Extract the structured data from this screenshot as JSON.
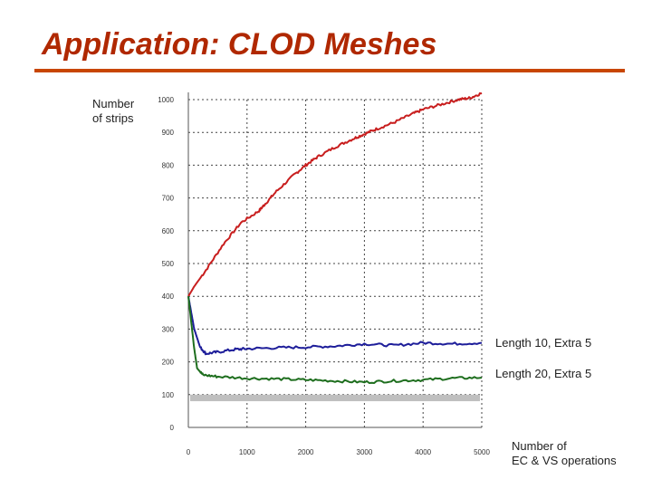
{
  "slide": {
    "title": "Application: CLOD Meshes"
  },
  "chart_data": {
    "type": "line",
    "ylabel_lines": [
      "Number",
      "of strips"
    ],
    "xlabel_lines": [
      "Number of",
      "EC & VS operations"
    ],
    "x_ticks": [
      0,
      1000,
      2000,
      3000,
      4000,
      5000
    ],
    "y_ticks": [
      0,
      100,
      200,
      300,
      400,
      500,
      600,
      700,
      800,
      900,
      1000
    ],
    "xlim": [
      0,
      5000
    ],
    "ylim": [
      0,
      1000
    ],
    "grid": true,
    "colors": {
      "red": "#c81e1e",
      "blue": "#1e1e9a",
      "green": "#1e6e1e",
      "band": "#bfbfbf"
    },
    "series": [
      {
        "name": "upper",
        "color_key": "red",
        "label": "",
        "x": [
          0,
          100,
          300,
          600,
          900,
          1200,
          1300,
          1500,
          1800,
          2000,
          2200,
          2500,
          2800,
          3000,
          3200,
          3500,
          3800,
          4000,
          4300,
          4600,
          4800,
          5000
        ],
        "y": [
          400,
          430,
          480,
          560,
          625,
          660,
          680,
          720,
          770,
          800,
          825,
          855,
          880,
          895,
          910,
          930,
          955,
          970,
          985,
          1000,
          1005,
          1020
        ]
      },
      {
        "name": "Length 10, Extra 5",
        "color_key": "blue",
        "label": "Length 10, Extra 5",
        "x": [
          0,
          100,
          200,
          300,
          500,
          800,
          1000,
          1500,
          2000,
          2500,
          3000,
          3500,
          4000,
          4500,
          5000
        ],
        "y": [
          400,
          300,
          245,
          225,
          230,
          238,
          240,
          243,
          245,
          248,
          255,
          250,
          258,
          255,
          258
        ]
      },
      {
        "name": "Length 20, Extra 5",
        "color_key": "green",
        "label": "Length 20, Extra 5",
        "x": [
          0,
          100,
          150,
          250,
          500,
          1000,
          1500,
          2000,
          2500,
          3000,
          3500,
          4000,
          4500,
          5000
        ],
        "y": [
          400,
          240,
          180,
          160,
          155,
          150,
          148,
          145,
          142,
          138,
          142,
          145,
          150,
          152
        ]
      }
    ],
    "band": {
      "y_from": 80,
      "y_to": 100,
      "color_key": "band"
    }
  }
}
